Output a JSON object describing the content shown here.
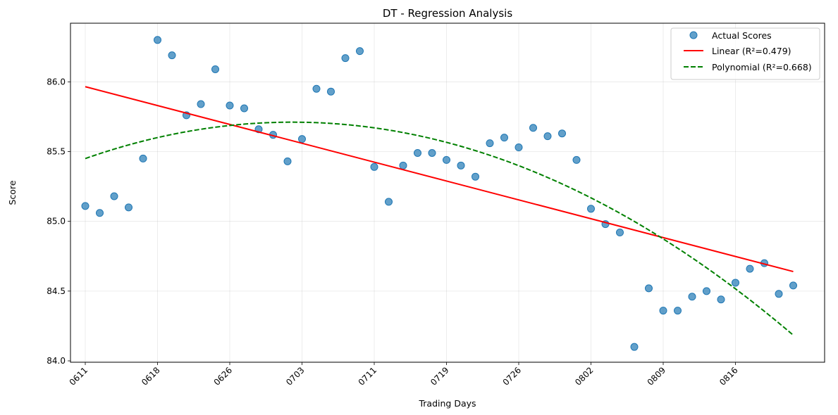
{
  "chart_data": {
    "type": "scatter",
    "title": "DT - Regression Analysis",
    "xlabel": "Trading Days",
    "ylabel": "Score",
    "x_tick_labels": [
      "0611",
      "0618",
      "0626",
      "0703",
      "0711",
      "0719",
      "0726",
      "0802",
      "0809",
      "0816"
    ],
    "x_tick_indices": [
      0,
      5,
      10,
      15,
      20,
      25,
      30,
      35,
      40,
      45
    ],
    "y_ticks": [
      84.0,
      84.5,
      85.0,
      85.5,
      86.0
    ],
    "y_tick_labels": [
      "84.0",
      "84.5",
      "85.0",
      "85.5",
      "86.0"
    ],
    "ylim": [
      83.99,
      86.42
    ],
    "grid": true,
    "legend_position": "top-right",
    "series": [
      {
        "name": "Actual Scores",
        "kind": "scatter",
        "color": "#1f77b4",
        "values": [
          85.11,
          85.06,
          85.18,
          85.1,
          85.45,
          86.3,
          86.19,
          85.76,
          85.84,
          86.09,
          85.83,
          85.81,
          85.66,
          85.62,
          85.43,
          85.59,
          85.95,
          85.93,
          86.17,
          86.22,
          85.39,
          85.14,
          85.4,
          85.49,
          85.49,
          85.44,
          85.4,
          85.32,
          85.56,
          85.6,
          85.53,
          85.67,
          85.61,
          85.63,
          85.44,
          85.09,
          84.98,
          84.92,
          84.1,
          84.52,
          84.36,
          84.36,
          84.46,
          84.5,
          84.44,
          84.56,
          84.66,
          84.7,
          84.48,
          84.54
        ]
      },
      {
        "name": "Linear (R²=0.479)",
        "kind": "line",
        "color": "#ff0000",
        "dash": "solid",
        "start": 85.965,
        "end": 84.64
      },
      {
        "name": "Polynomial (R²=0.668)",
        "kind": "line",
        "color": "#008000",
        "dash": "dashed",
        "poly_coeffs": [
          85.45,
          0.0364,
          -0.00127
        ],
        "start": 85.45,
        "end": 84.13
      }
    ]
  }
}
